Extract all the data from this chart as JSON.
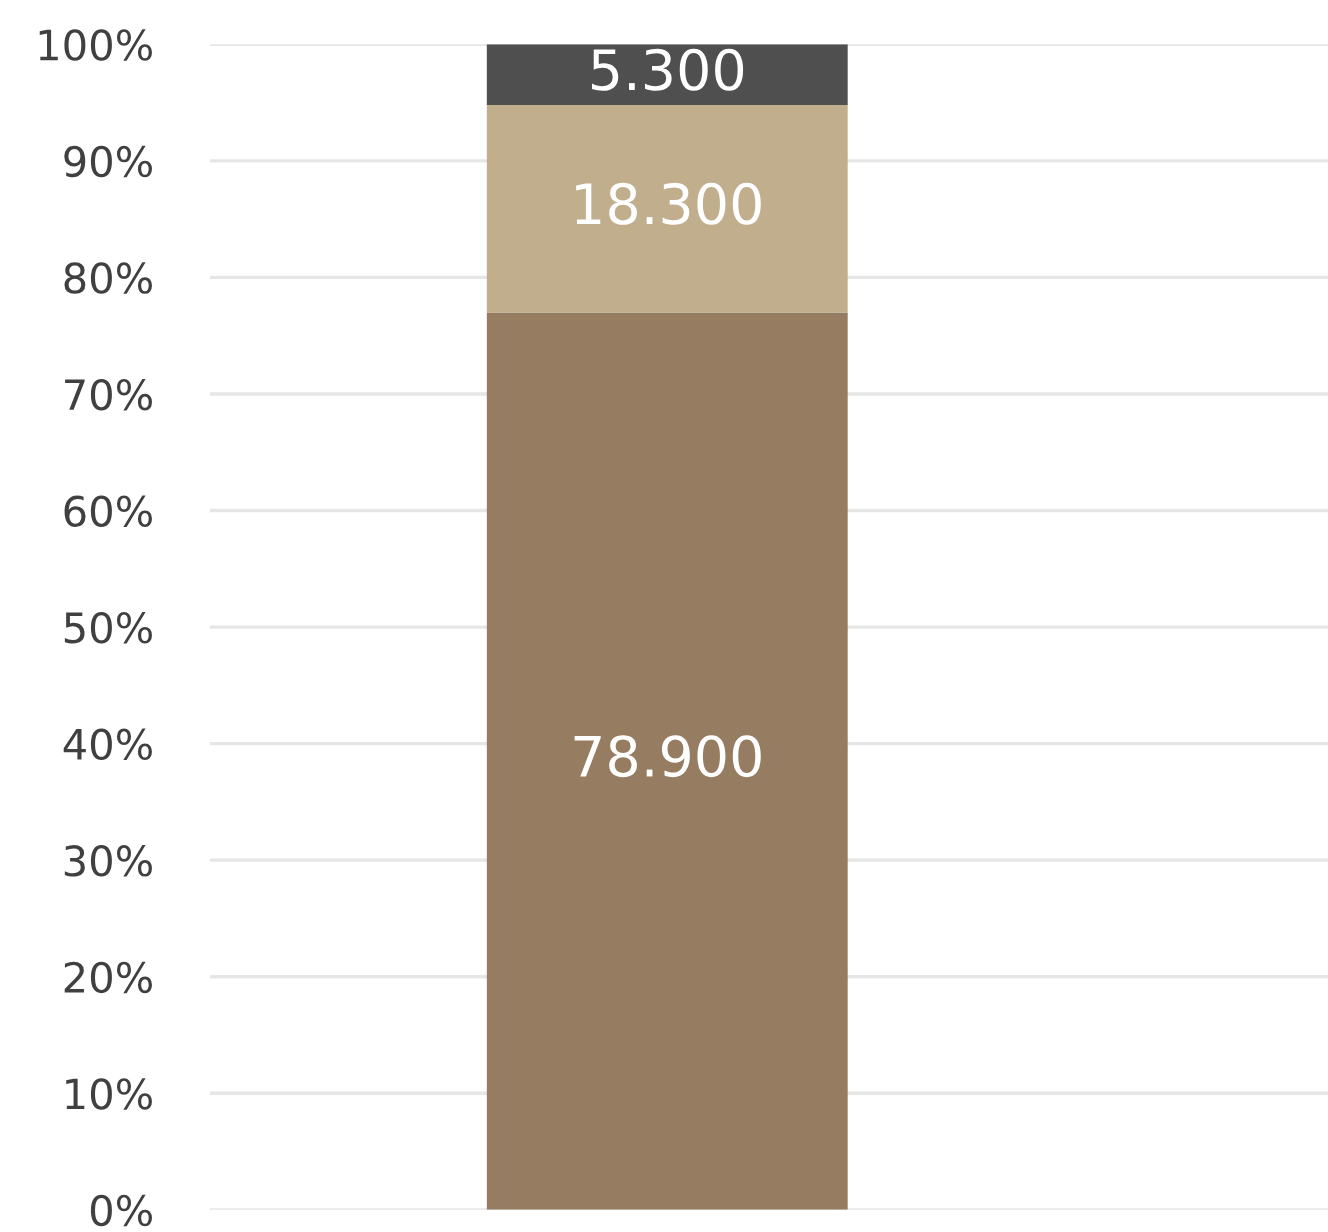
{
  "chart_data": {
    "type": "bar",
    "stacked": true,
    "categories": [
      null
    ],
    "series": [
      {
        "color": "#967c60",
        "values": [
          77.0
        ]
      },
      {
        "color": "#c1ae8d",
        "values": [
          17.8
        ]
      },
      {
        "color": "#4f4f4f",
        "values": [
          5.2
        ]
      }
    ],
    "annotations": [
      "78.900",
      "18.300",
      "5.300"
    ],
    "ylim": [
      0,
      100
    ],
    "yticks": [
      {
        "value": 0,
        "label": "0%"
      },
      {
        "value": 10,
        "label": "10%"
      },
      {
        "value": 20,
        "label": "20%"
      },
      {
        "value": 30,
        "label": "30%"
      },
      {
        "value": 40,
        "label": "40%"
      },
      {
        "value": 50,
        "label": "50%"
      },
      {
        "value": 60,
        "label": "60%"
      },
      {
        "value": 70,
        "label": "70%"
      },
      {
        "value": 80,
        "label": "80%"
      },
      {
        "value": 90,
        "label": "90%"
      },
      {
        "value": 100,
        "label": "100%"
      }
    ],
    "grid": "y",
    "legend": false
  }
}
